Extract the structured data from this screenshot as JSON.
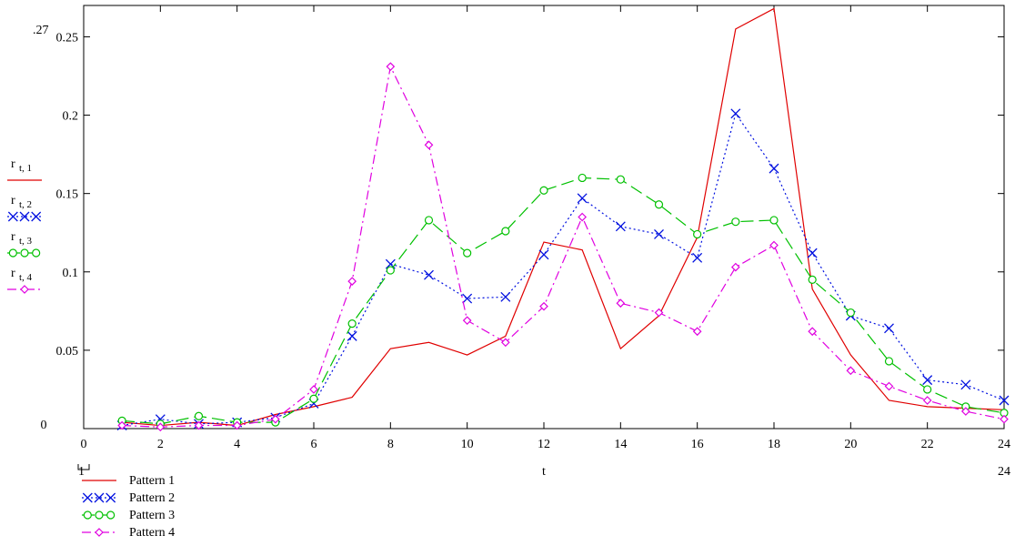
{
  "chart_data": {
    "type": "line",
    "x": [
      1,
      2,
      3,
      4,
      5,
      6,
      7,
      8,
      9,
      10,
      11,
      12,
      13,
      14,
      15,
      16,
      17,
      18,
      19,
      20,
      21,
      22,
      23,
      24
    ],
    "xlim": [
      0,
      24
    ],
    "ylim": [
      0,
      0.27
    ],
    "xticks": [
      "0",
      "2",
      "4",
      "6",
      "8",
      "10",
      "12",
      "14",
      "16",
      "18",
      "20",
      "22",
      "24"
    ],
    "yticks": [
      "0",
      "0.05",
      "0.1",
      "0.15",
      "0.2",
      "0.25"
    ],
    "x_min_label": "1",
    "x_max_label": "24",
    "y_max_label": ".27",
    "y_min_label": "0",
    "xlabel": "t",
    "grid": false,
    "series": [
      {
        "name": "Pattern 1",
        "axis_label": "r",
        "axis_sub": "t, 1",
        "color": "#e00000",
        "dash": "solid",
        "marker": "none",
        "values": [
          0.004,
          0.002,
          0.004,
          0.002,
          0.009,
          0.014,
          0.02,
          0.051,
          0.055,
          0.047,
          0.059,
          0.119,
          0.114,
          0.051,
          0.072,
          0.122,
          0.255,
          0.268,
          0.089,
          0.047,
          0.018,
          0.014,
          0.013,
          0.012
        ]
      },
      {
        "name": "Pattern 2",
        "axis_label": "r",
        "axis_sub": "t, 2",
        "color": "#0010e0",
        "dash": "dot",
        "marker": "x",
        "values": [
          0.002,
          0.006,
          0.003,
          0.004,
          0.007,
          0.016,
          0.059,
          0.105,
          0.098,
          0.083,
          0.084,
          0.111,
          0.147,
          0.129,
          0.124,
          0.109,
          0.201,
          0.166,
          0.112,
          0.072,
          0.064,
          0.031,
          0.028,
          0.018
        ]
      },
      {
        "name": "Pattern 3",
        "axis_label": "r",
        "axis_sub": "t, 3",
        "color": "#00c000",
        "dash": "longdash",
        "marker": "circle",
        "values": [
          0.005,
          0.003,
          0.008,
          0.004,
          0.004,
          0.019,
          0.067,
          0.101,
          0.133,
          0.112,
          0.126,
          0.152,
          0.16,
          0.159,
          0.143,
          0.124,
          0.132,
          0.133,
          0.095,
          0.074,
          0.043,
          0.025,
          0.014,
          0.01
        ]
      },
      {
        "name": "Pattern 4",
        "axis_label": "r",
        "axis_sub": "t, 4",
        "color": "#e000e0",
        "dash": "dashdot",
        "marker": "diamond",
        "values": [
          0.002,
          0.001,
          0.002,
          0.002,
          0.006,
          0.025,
          0.094,
          0.231,
          0.181,
          0.069,
          0.055,
          0.078,
          0.135,
          0.08,
          0.074,
          0.062,
          0.103,
          0.117,
          0.062,
          0.037,
          0.027,
          0.018,
          0.011,
          0.006
        ]
      }
    ]
  }
}
